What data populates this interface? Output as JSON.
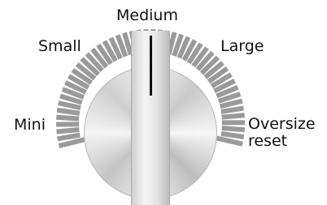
{
  "labels": {
    "medium": "Medium",
    "small": "Small",
    "large": "Large",
    "mini": "Mini",
    "oversize": "Oversize reset"
  }
}
